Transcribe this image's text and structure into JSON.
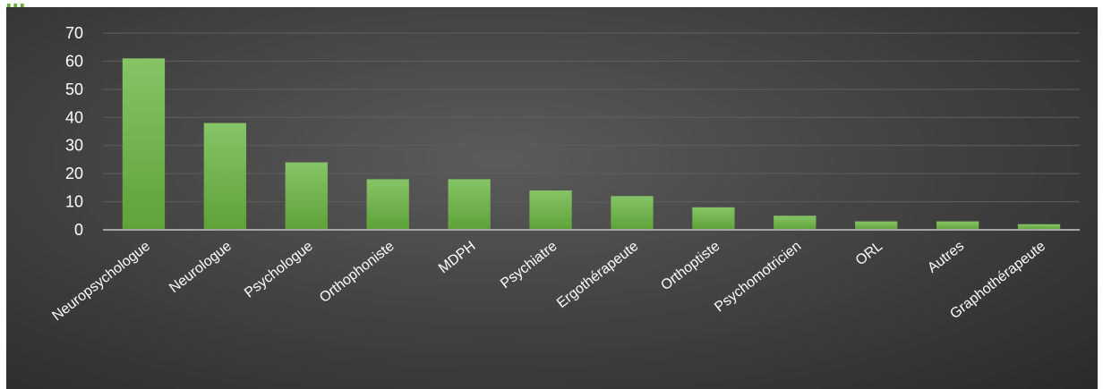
{
  "chart_data": {
    "type": "bar",
    "title": "...",
    "categories": [
      "Neuropsychologue",
      "Neurologue",
      "Psychologue",
      "Orthophoniste",
      "MDPH",
      "Psychiatre",
      "Ergothérapeute",
      "Orthoptiste",
      "Psychomotricien",
      "ORL",
      "Autres",
      "Graphothérapeute"
    ],
    "values": [
      61,
      38,
      24,
      18,
      18,
      14,
      12,
      8,
      5,
      3,
      3,
      2
    ],
    "ylim": [
      0,
      70
    ],
    "yticks": [
      "0",
      "10",
      "20",
      "30",
      "40",
      "50",
      "60",
      "70"
    ],
    "xlabel": "",
    "ylabel": "",
    "grid": true,
    "legend": "none",
    "colors": {
      "bar_top": "#86c466",
      "bar_bottom": "#5ea238",
      "background": "#3f3f3f",
      "grid": "#5e5e5e",
      "axis": "#a6a6a6",
      "text": "#ffffff",
      "title": "#6aaf3d"
    }
  }
}
